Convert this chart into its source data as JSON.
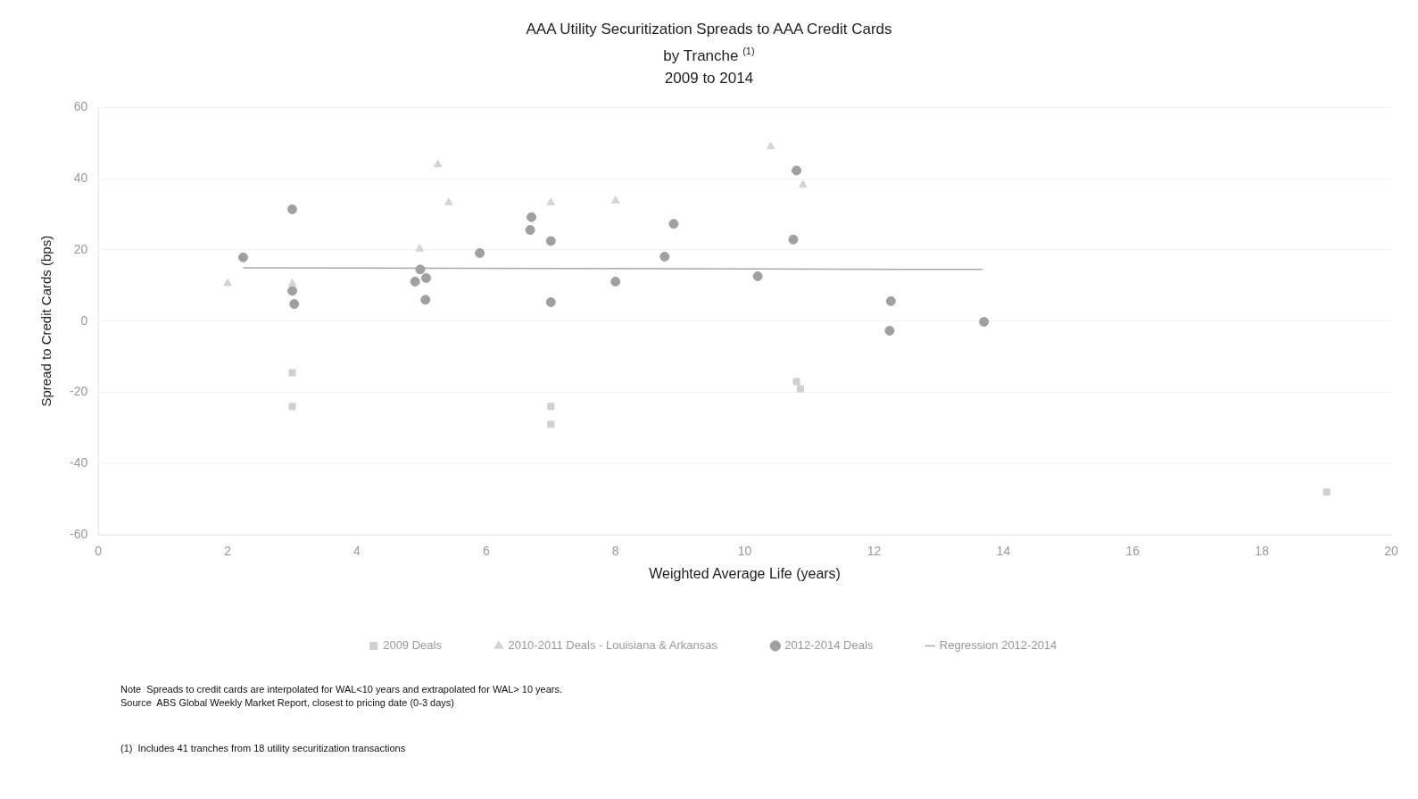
{
  "chart_data": {
    "type": "scatter",
    "title": "AAA Utility Securitization Spreads to AAA Credit Cards\nby Tranche $^{(1)}$\n2009 to 2014",
    "xlabel": "Weighted Average Life (years)",
    "ylabel": "Spread to Credit Cards (bps)",
    "xlim": [
      0,
      20
    ],
    "xticks": [
      0,
      2,
      4,
      6,
      8,
      10,
      12,
      14,
      16,
      18,
      20
    ],
    "ylim": [
      -60,
      60
    ],
    "yticks": [
      -60,
      -40,
      -20,
      0,
      20,
      40,
      60
    ],
    "grid": "y",
    "legend": "bottom",
    "series": [
      {
        "name": "2009 Deals",
        "type": "scatter",
        "marker": "square",
        "color": "#d0d0d0",
        "x": [
          3.0,
          3.0,
          7.0,
          7.0,
          10.8,
          10.86,
          19.0
        ],
        "values": [
          -14.5,
          -24,
          -24,
          -29,
          -17,
          -19,
          -48
        ]
      },
      {
        "name": "2010-2011 Deals - Louisiana & Arkansas",
        "type": "scatter",
        "marker": "triangle",
        "color": "#d4d4d4",
        "x": [
          2.0,
          5.25,
          5.42,
          4.97,
          3.0,
          7.0,
          8.0,
          10.4,
          10.9
        ],
        "values": [
          10.6,
          44,
          33.3,
          20.3,
          10.6,
          33.3,
          33.8,
          49,
          38.2
        ]
      },
      {
        "name": "2012-2014 Deals",
        "type": "scatter",
        "marker": "circle",
        "color": "#a0a0a0",
        "x": [
          2.24,
          3.0,
          3.0,
          3.03,
          4.9,
          4.98,
          5.07,
          5.06,
          5.9,
          6.7,
          6.68,
          7.0,
          7.0,
          8.0,
          8.76,
          8.9,
          10.2,
          10.8,
          10.75,
          12.26,
          12.24,
          13.7
        ],
        "values": [
          17.9,
          31.4,
          8.5,
          4.8,
          11.1,
          14.5,
          12.1,
          6.0,
          19.1,
          29.2,
          25.6,
          22.5,
          5.3,
          11.1,
          18.1,
          27.3,
          12.6,
          42.3,
          22.9,
          5.6,
          -2.7,
          -0.2
        ]
      },
      {
        "name": "Regression 2012-2014",
        "type": "line",
        "marker": "none",
        "color": "#a8a8a8",
        "x": [
          2.24,
          13.68
        ],
        "values": [
          15,
          14.5
        ]
      }
    ],
    "annotations": [
      "Note  Spreads to credit cards are interpolated for WAL<10 years and extrapolated for WAL> 10 years.\nSource  ABS Global Weekly Market Report, closest to pricing date (0-3 days)",
      "(1)  Includes 41 tranches from 18 utility securitization transactions"
    ]
  }
}
